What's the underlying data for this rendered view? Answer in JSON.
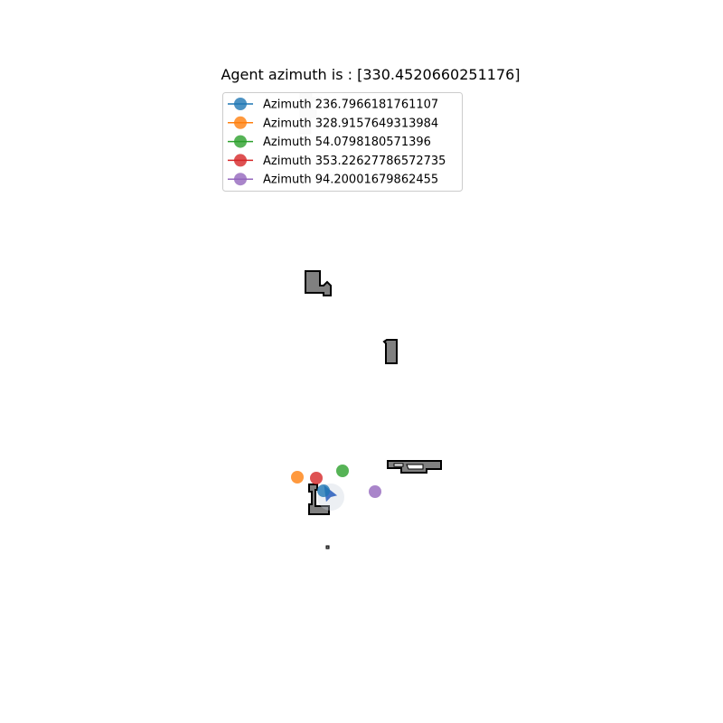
{
  "chart_data": {
    "type": "scatter",
    "title": "Agent azimuth is : [330.4520660251176]",
    "xlabel": "",
    "ylabel": "",
    "axes_visible": false,
    "grid": false,
    "legend_placement": "top-left",
    "series": [
      {
        "name": "Azimuth 236.7966181761107",
        "color": "#1f77b4",
        "points": [
          {
            "x": 358,
            "y": 543
          }
        ]
      },
      {
        "name": "Azimuth 328.9157649313984",
        "color": "#ff7f0e",
        "points": [
          {
            "x": 329,
            "y": 528
          }
        ]
      },
      {
        "name": "Azimuth 54.0798180571396",
        "color": "#2ca02c",
        "points": [
          {
            "x": 379,
            "y": 521
          }
        ]
      },
      {
        "name": "Azimuth 353.22627786572735",
        "color": "#d62728",
        "points": [
          {
            "x": 350,
            "y": 529
          }
        ]
      },
      {
        "name": "Azimuth 94.20001679862455",
        "color": "#9467bd",
        "points": [
          {
            "x": 415,
            "y": 544
          }
        ]
      }
    ],
    "agent": {
      "azimuth": 330.4520660251176,
      "x": 366,
      "y": 550,
      "color": "#4472c4"
    }
  }
}
